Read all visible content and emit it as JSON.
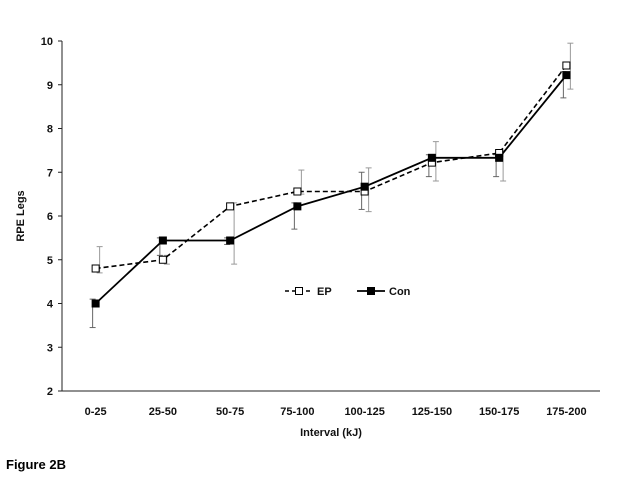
{
  "figure_caption": "Figure 2B",
  "chart_data": {
    "type": "line",
    "title": "",
    "xlabel": "Interval  (kJ)",
    "ylabel": "RPE Legs",
    "ylim": [
      2,
      10
    ],
    "yticks": [
      2,
      3,
      4,
      5,
      6,
      7,
      8,
      9,
      10
    ],
    "categories": [
      "0-25",
      "25-50",
      "50-75",
      "75-100",
      "100-125",
      "125-150",
      "150-175",
      "175-200"
    ],
    "grid": false,
    "legend_position": "center",
    "series": [
      {
        "name": "EP",
        "style": "dashed",
        "marker": "open-square",
        "color": "#000000",
        "values": [
          4.8,
          5.0,
          6.22,
          6.56,
          6.56,
          7.22,
          7.44,
          9.44
        ],
        "error_upper": [
          5.3,
          5.1,
          6.3,
          7.05,
          7.1,
          7.7,
          7.5,
          9.95
        ],
        "error_lower": [
          4.7,
          4.9,
          4.9,
          6.5,
          6.1,
          6.8,
          6.8,
          8.9
        ]
      },
      {
        "name": "Con",
        "style": "solid",
        "marker": "filled-square",
        "color": "#000000",
        "values": [
          4.0,
          5.44,
          5.44,
          6.22,
          6.67,
          7.33,
          7.33,
          9.22
        ],
        "error_upper": [
          4.1,
          5.5,
          5.5,
          6.3,
          7.0,
          7.4,
          7.4,
          9.3
        ],
        "error_lower": [
          3.45,
          5.1,
          5.35,
          5.7,
          6.15,
          6.9,
          6.9,
          8.7
        ]
      }
    ]
  }
}
